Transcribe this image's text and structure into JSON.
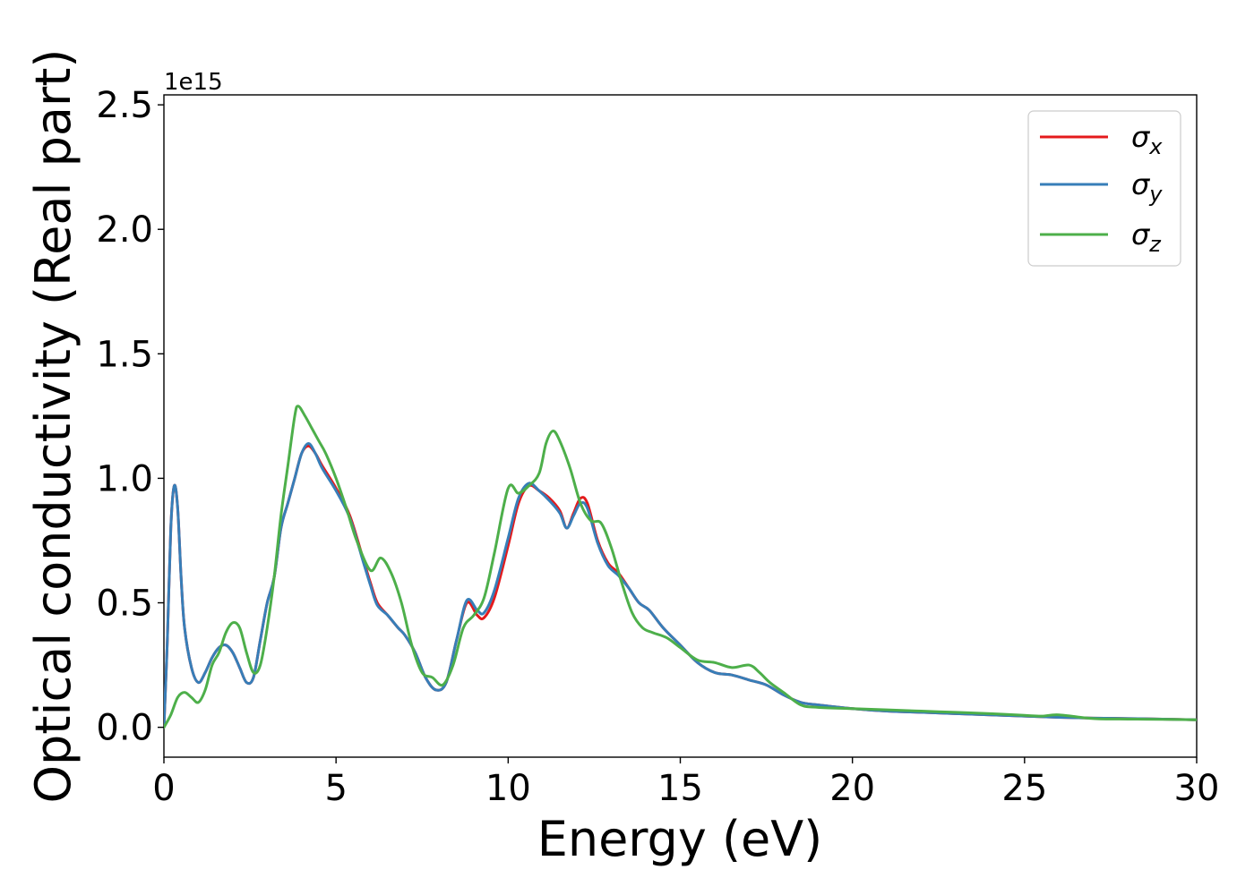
{
  "chart_data": {
    "type": "line",
    "xlabel": "Energy (eV)",
    "ylabel": "Optical conductivity (Real part)",
    "y_offset_label": "1e15",
    "xlim": [
      0,
      30
    ],
    "ylim": [
      -0.12,
      2.54
    ],
    "x_ticks": [
      0,
      5,
      10,
      15,
      20,
      25,
      30
    ],
    "x_tick_labels": [
      "0",
      "5",
      "10",
      "15",
      "20",
      "25",
      "30"
    ],
    "y_ticks": [
      0.0,
      0.5,
      1.0,
      1.5,
      2.0,
      2.5
    ],
    "y_tick_labels": [
      "0.0",
      "0.5",
      "1.0",
      "1.5",
      "2.0",
      "2.5"
    ],
    "grid": false,
    "legend_position": "top-right",
    "legend": [
      {
        "symbol": "σ",
        "subscript": "x",
        "color": "#e41a1c"
      },
      {
        "symbol": "σ",
        "subscript": "y",
        "color": "#377eb8"
      },
      {
        "symbol": "σ",
        "subscript": "z",
        "color": "#4daf4a"
      }
    ],
    "series": [
      {
        "color": "#e41a1c",
        "x": [
          0,
          0.1,
          0.2,
          0.3,
          0.4,
          0.5,
          0.6,
          0.8,
          1.0,
          1.2,
          1.4,
          1.6,
          1.8,
          2.0,
          2.2,
          2.4,
          2.6,
          2.8,
          3.0,
          3.2,
          3.4,
          3.6,
          3.8,
          4.0,
          4.2,
          4.4,
          4.6,
          5.0,
          5.4,
          5.8,
          6.0,
          6.2,
          6.5,
          6.8,
          7.0,
          7.3,
          7.6,
          7.9,
          8.2,
          8.5,
          8.8,
          9.1,
          9.3,
          9.6,
          10.0,
          10.3,
          10.6,
          10.9,
          11.2,
          11.5,
          11.7,
          11.9,
          12.1,
          12.3,
          12.6,
          12.9,
          13.2,
          13.5,
          13.8,
          14.1,
          14.5,
          15.0,
          15.5,
          16.0,
          16.5,
          17.0,
          17.5,
          18.0,
          18.5,
          19.0,
          20.0,
          21.0,
          22.0,
          23.0,
          24.0,
          25.0,
          26.0,
          27.0,
          28.0,
          29.0,
          30.0
        ],
        "y": [
          0.0,
          0.35,
          0.8,
          0.97,
          0.88,
          0.6,
          0.4,
          0.24,
          0.18,
          0.22,
          0.28,
          0.32,
          0.33,
          0.3,
          0.24,
          0.18,
          0.2,
          0.35,
          0.5,
          0.6,
          0.8,
          0.9,
          1.0,
          1.1,
          1.13,
          1.1,
          1.05,
          0.96,
          0.85,
          0.67,
          0.58,
          0.5,
          0.45,
          0.4,
          0.37,
          0.3,
          0.2,
          0.15,
          0.18,
          0.35,
          0.5,
          0.45,
          0.44,
          0.52,
          0.73,
          0.9,
          0.97,
          0.95,
          0.92,
          0.87,
          0.8,
          0.86,
          0.92,
          0.9,
          0.75,
          0.66,
          0.62,
          0.56,
          0.5,
          0.47,
          0.4,
          0.33,
          0.26,
          0.22,
          0.21,
          0.19,
          0.17,
          0.13,
          0.1,
          0.09,
          0.075,
          0.065,
          0.06,
          0.055,
          0.05,
          0.045,
          0.04,
          0.037,
          0.035,
          0.033,
          0.03
        ]
      },
      {
        "color": "#377eb8",
        "x": [
          0,
          0.1,
          0.2,
          0.3,
          0.4,
          0.5,
          0.6,
          0.8,
          1.0,
          1.2,
          1.4,
          1.6,
          1.8,
          2.0,
          2.2,
          2.4,
          2.6,
          2.8,
          3.0,
          3.2,
          3.4,
          3.6,
          3.8,
          4.0,
          4.2,
          4.4,
          4.6,
          5.0,
          5.4,
          5.8,
          6.0,
          6.2,
          6.5,
          6.8,
          7.0,
          7.3,
          7.6,
          7.9,
          8.2,
          8.5,
          8.8,
          9.1,
          9.3,
          9.6,
          10.0,
          10.3,
          10.6,
          10.9,
          11.2,
          11.5,
          11.7,
          11.9,
          12.1,
          12.3,
          12.6,
          12.9,
          13.2,
          13.5,
          13.8,
          14.1,
          14.5,
          15.0,
          15.5,
          16.0,
          16.5,
          17.0,
          17.5,
          18.0,
          18.5,
          19.0,
          20.0,
          21.0,
          22.0,
          23.0,
          24.0,
          25.0,
          26.0,
          27.0,
          28.0,
          29.0,
          30.0
        ],
        "y": [
          0.0,
          0.35,
          0.8,
          0.97,
          0.88,
          0.6,
          0.4,
          0.24,
          0.18,
          0.22,
          0.28,
          0.32,
          0.33,
          0.3,
          0.24,
          0.18,
          0.2,
          0.35,
          0.5,
          0.6,
          0.8,
          0.9,
          1.0,
          1.1,
          1.14,
          1.1,
          1.04,
          0.95,
          0.84,
          0.66,
          0.57,
          0.49,
          0.45,
          0.4,
          0.37,
          0.3,
          0.2,
          0.15,
          0.18,
          0.35,
          0.51,
          0.47,
          0.46,
          0.55,
          0.76,
          0.92,
          0.98,
          0.95,
          0.91,
          0.86,
          0.8,
          0.85,
          0.9,
          0.88,
          0.74,
          0.65,
          0.61,
          0.56,
          0.5,
          0.47,
          0.4,
          0.33,
          0.26,
          0.22,
          0.21,
          0.19,
          0.17,
          0.13,
          0.1,
          0.09,
          0.075,
          0.065,
          0.06,
          0.055,
          0.05,
          0.045,
          0.04,
          0.037,
          0.035,
          0.033,
          0.03
        ]
      },
      {
        "color": "#4daf4a",
        "x": [
          0,
          0.2,
          0.4,
          0.6,
          0.8,
          1.0,
          1.2,
          1.4,
          1.6,
          1.8,
          2.0,
          2.2,
          2.4,
          2.6,
          2.8,
          3.0,
          3.2,
          3.4,
          3.6,
          3.8,
          3.9,
          4.1,
          4.3,
          4.5,
          4.7,
          5.0,
          5.3,
          5.6,
          6.0,
          6.3,
          6.6,
          6.9,
          7.2,
          7.5,
          7.8,
          8.1,
          8.4,
          8.7,
          9.0,
          9.3,
          9.6,
          10.0,
          10.3,
          10.6,
          10.9,
          11.1,
          11.3,
          11.5,
          11.8,
          12.1,
          12.4,
          12.7,
          13.0,
          13.3,
          13.6,
          13.9,
          14.2,
          14.6,
          15.0,
          15.5,
          16.0,
          16.5,
          17.0,
          17.3,
          17.6,
          18.0,
          18.5,
          19.0,
          20.0,
          21.0,
          22.0,
          23.0,
          24.0,
          25.0,
          25.5,
          26.0,
          27.0,
          28.0,
          29.0,
          30.0
        ],
        "y": [
          0.0,
          0.05,
          0.12,
          0.14,
          0.12,
          0.1,
          0.15,
          0.25,
          0.3,
          0.38,
          0.42,
          0.4,
          0.3,
          0.22,
          0.25,
          0.4,
          0.6,
          0.85,
          1.05,
          1.25,
          1.29,
          1.25,
          1.2,
          1.15,
          1.1,
          1.0,
          0.88,
          0.75,
          0.63,
          0.68,
          0.62,
          0.5,
          0.33,
          0.22,
          0.2,
          0.17,
          0.25,
          0.4,
          0.45,
          0.52,
          0.7,
          0.96,
          0.94,
          0.97,
          1.02,
          1.14,
          1.19,
          1.15,
          1.04,
          0.9,
          0.83,
          0.82,
          0.72,
          0.58,
          0.46,
          0.4,
          0.38,
          0.36,
          0.32,
          0.27,
          0.26,
          0.24,
          0.25,
          0.22,
          0.18,
          0.14,
          0.09,
          0.08,
          0.075,
          0.07,
          0.065,
          0.06,
          0.055,
          0.048,
          0.045,
          0.05,
          0.035,
          0.033,
          0.032,
          0.03
        ]
      }
    ]
  }
}
